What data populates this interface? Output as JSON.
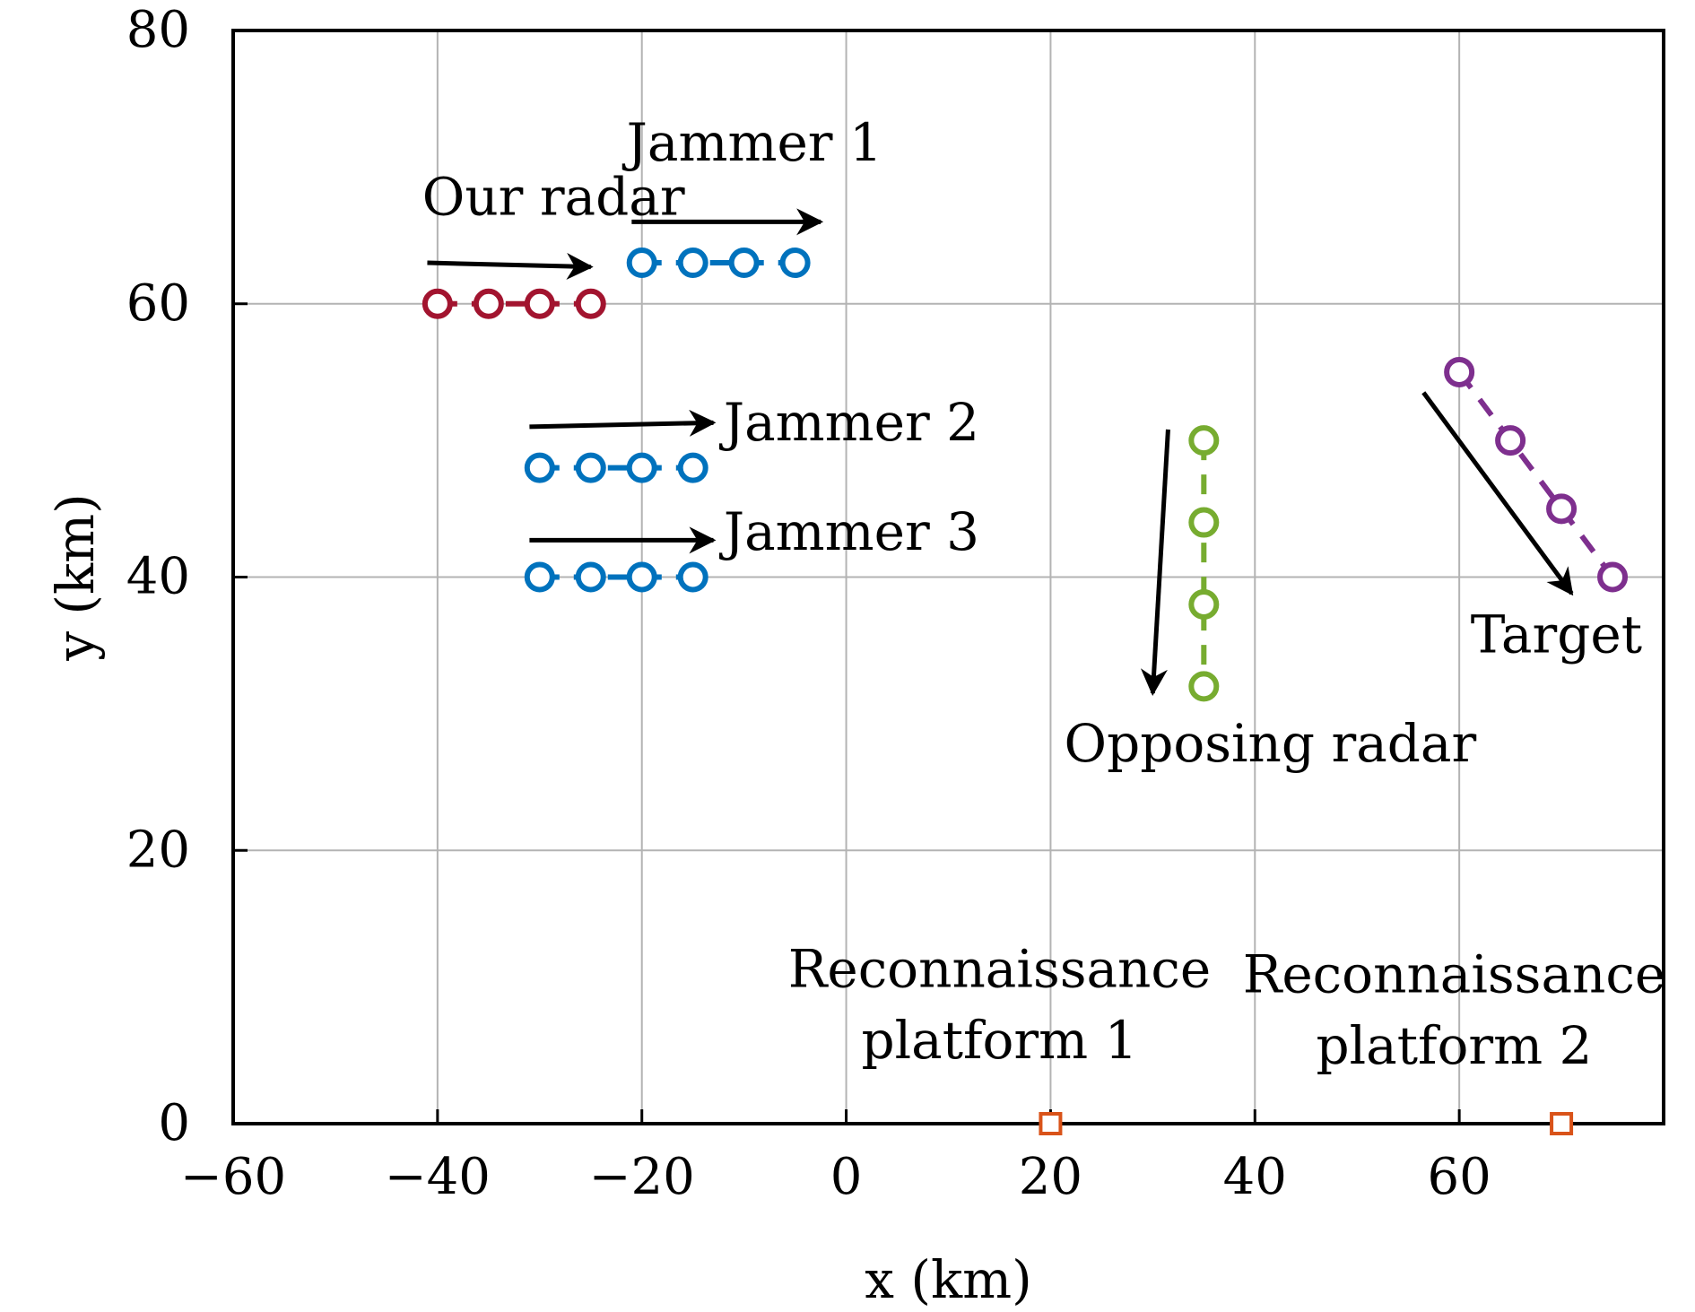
{
  "chart_data": {
    "type": "scatter",
    "xlabel": "x (km)",
    "ylabel": "y (km)",
    "xlim": [
      -60,
      80
    ],
    "ylim": [
      0,
      80
    ],
    "xticks": [
      -60,
      -40,
      -20,
      0,
      20,
      40,
      60
    ],
    "yticks": [
      0,
      20,
      40,
      60,
      80
    ],
    "grid": true,
    "series": [
      {
        "color": "#a2142f",
        "marker": "circle",
        "line": "dashed",
        "x": [
          -40,
          -35,
          -30,
          -25
        ],
        "y": [
          60,
          60,
          60,
          60
        ]
      },
      {
        "color": "#0072bd",
        "marker": "circle",
        "line": "dashed",
        "x": [
          -20,
          -15,
          -10,
          -5
        ],
        "y": [
          63,
          63,
          63,
          63
        ]
      },
      {
        "color": "#0072bd",
        "marker": "circle",
        "line": "dashed",
        "x": [
          -30,
          -25,
          -20,
          -15
        ],
        "y": [
          48,
          48,
          48,
          48
        ]
      },
      {
        "color": "#0072bd",
        "marker": "circle",
        "line": "dashed",
        "x": [
          -30,
          -25,
          -20,
          -15
        ],
        "y": [
          40,
          40,
          40,
          40
        ]
      },
      {
        "color": "#77ac30",
        "marker": "circle",
        "line": "dashed",
        "x": [
          35,
          35,
          35,
          35
        ],
        "y": [
          50,
          44,
          38,
          32
        ]
      },
      {
        "color": "#7e2f8e",
        "marker": "circle",
        "line": "dashed",
        "x": [
          60,
          65,
          70,
          75
        ],
        "y": [
          55,
          50,
          45,
          40
        ]
      },
      {
        "color": "#d95319",
        "marker": "square",
        "line": "none",
        "x": [
          20
        ],
        "y": [
          0
        ]
      },
      {
        "color": "#d95319",
        "marker": "square",
        "line": "none",
        "x": [
          70
        ],
        "y": [
          0
        ]
      }
    ],
    "arrows": [
      {
        "from": [
          -41,
          63
        ],
        "to": [
          -25,
          62.7
        ]
      },
      {
        "from": [
          -21,
          66
        ],
        "to": [
          -2.5,
          66
        ]
      },
      {
        "from": [
          -31,
          51
        ],
        "to": [
          -13,
          51.3
        ]
      },
      {
        "from": [
          -31,
          42.7
        ],
        "to": [
          -13,
          42.7
        ]
      },
      {
        "from": [
          31.5,
          50.8
        ],
        "to": [
          30,
          31.5
        ]
      },
      {
        "from": [
          56.5,
          53.5
        ],
        "to": [
          71,
          38.8
        ]
      }
    ],
    "annotations": [
      {
        "text": "Our radar",
        "x": -41.5,
        "y": 66.5,
        "anchor": "start"
      },
      {
        "text": "Jammer 1",
        "x": -21.5,
        "y": 70.5,
        "anchor": "start"
      },
      {
        "text": "Jammer 2",
        "x": -12,
        "y": 50,
        "anchor": "start"
      },
      {
        "text": "Jammer 3",
        "x": -12,
        "y": 42,
        "anchor": "start"
      },
      {
        "text": "Opposing radar",
        "x": 41.5,
        "y": 26.5,
        "anchor": "middle"
      },
      {
        "text": "Target",
        "x": 69.5,
        "y": 34.5,
        "anchor": "middle"
      },
      {
        "text": "Reconnaissance",
        "x": 15,
        "y": 10,
        "anchor": "middle"
      },
      {
        "text": "platform 1",
        "x": 15,
        "y": 4.8,
        "anchor": "middle"
      },
      {
        "text": "Reconnaissance",
        "x": 59.5,
        "y": 9.6,
        "anchor": "middle"
      },
      {
        "text": "platform 2",
        "x": 59.5,
        "y": 4.4,
        "anchor": "middle"
      }
    ]
  }
}
